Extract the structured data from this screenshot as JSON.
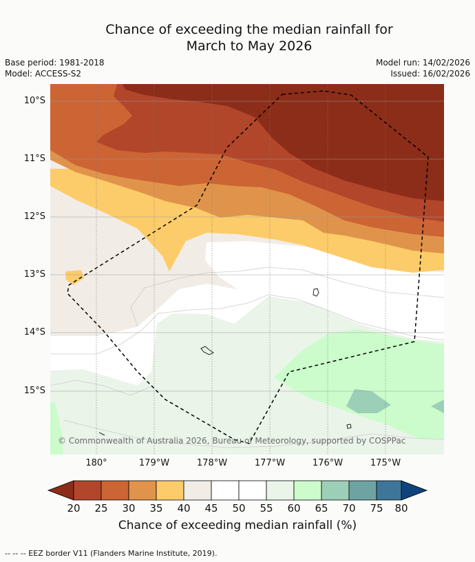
{
  "title_line1": "Chance of exceeding the median rainfall for",
  "title_line2": "March to May 2026",
  "base_period": "Base period: 1981-2018",
  "model": "Model: ACCESS-S2",
  "model_run": "Model run: 14/02/2026",
  "issued": "Issued: 16/02/2026",
  "latitude_labels": [
    "10°S",
    "11°S",
    "12°S",
    "13°S",
    "14°S",
    "15°S"
  ],
  "longitude_labels": [
    "180°",
    "179°W",
    "178°W",
    "177°W",
    "176°W",
    "175°W"
  ],
  "copyright": "© Commonwealth of Australia 2026, Bureau of Meteorology, supported by COSPPac",
  "colorbar": {
    "label": "Chance of exceeding median rainfall (%)",
    "ticks": [
      "20",
      "25",
      "30",
      "35",
      "40",
      "45",
      "50",
      "55",
      "60",
      "65",
      "70",
      "75",
      "80"
    ],
    "colors": [
      "#8c2d19",
      "#b2462a",
      "#cc6434",
      "#e0944b",
      "#fdcc6a",
      "#f1ece6",
      "#ffffff",
      "#ffffff",
      "#eaf4e9",
      "#ccfccc",
      "#9ccfb8",
      "#6ea3a4",
      "#3d7698",
      "#10427c"
    ]
  },
  "footer": "--  --  -- EEZ border V11 (Flanders Marine Institute, 2019)."
}
